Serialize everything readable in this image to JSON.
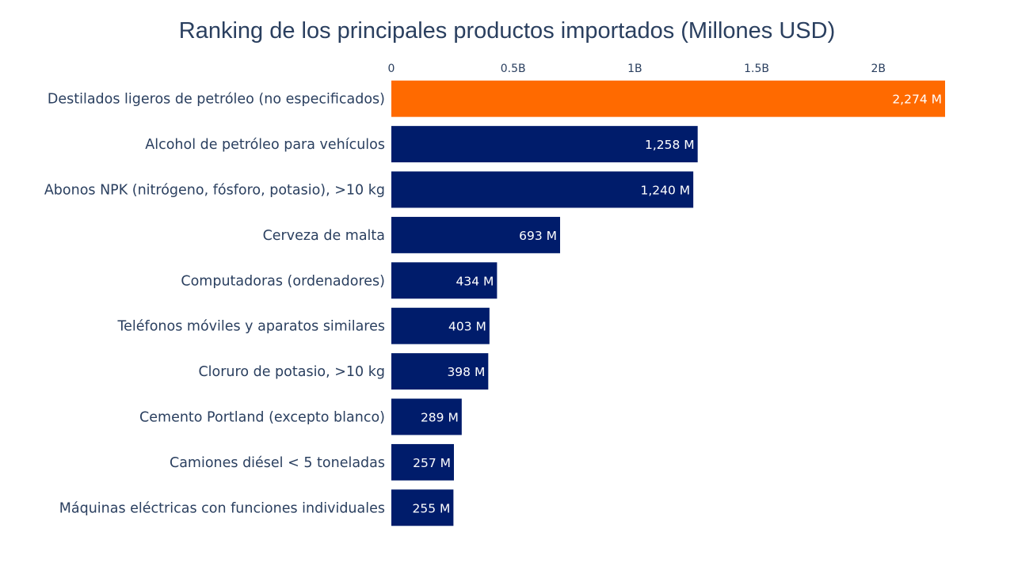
{
  "chart_data": {
    "type": "bar",
    "orientation": "horizontal",
    "title": "Ranking de los principales productos importados (Millones USD)",
    "xlabel": "",
    "ylabel": "",
    "xlim": [
      0,
      2274
    ],
    "xaxis_side": "top",
    "grid": false,
    "legend": "none",
    "x_ticks": [
      {
        "value": 0,
        "label": "0"
      },
      {
        "value": 500,
        "label": "0.5B"
      },
      {
        "value": 1000,
        "label": "1B"
      },
      {
        "value": 1500,
        "label": "1.5B"
      },
      {
        "value": 2000,
        "label": "2B"
      }
    ],
    "categories": [
      "Destilados ligeros de petróleo (no especificados)",
      "Alcohol de petróleo para vehículos",
      "Abonos NPK (nitrógeno, fósforo, potasio), >10 kg",
      "Cerveza de malta",
      "Computadoras (ordenadores)",
      "Teléfonos móviles y aparatos similares",
      "Cloruro de potasio, >10 kg",
      "Cemento Portland (excepto blanco)",
      "Camiones diésel < 5 toneladas",
      "Máquinas eléctricas con funciones individuales"
    ],
    "values": [
      2274,
      1258,
      1240,
      693,
      434,
      403,
      398,
      289,
      257,
      255
    ],
    "data_labels": [
      "2,274 M",
      "1,258 M",
      "1,240 M",
      "693 M",
      "434 M",
      "403 M",
      "398 M",
      "289 M",
      "257 M",
      "255 M"
    ],
    "colors": {
      "highlight": "#ff6a00",
      "default": "#001c6b",
      "text": "#2a3f5f",
      "label": "#ffffff"
    },
    "highlight_index": 0
  }
}
